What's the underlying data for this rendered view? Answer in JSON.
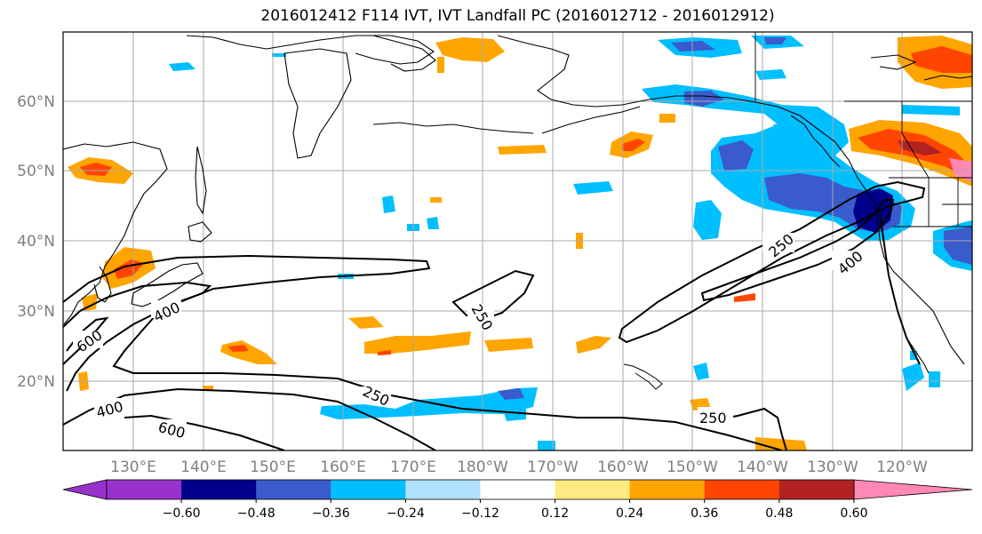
{
  "title": "2016012412 F114 IVT, IVT Landfall PC (2016012712 - 2016012912)",
  "latitude_labels": [
    "20°N",
    "30°N",
    "40°N",
    "50°N",
    "60°N"
  ],
  "longitude_labels": [
    "130°E",
    "140°E",
    "150°E",
    "160°E",
    "170°E",
    "180°W",
    "170°W",
    "160°W",
    "150°W",
    "140°W",
    "130°W",
    "120°W"
  ],
  "contour_labels": [
    {
      "id": "c1",
      "text": "600"
    },
    {
      "id": "c2",
      "text": "400"
    },
    {
      "id": "c3",
      "text": "400"
    },
    {
      "id": "c4",
      "text": "600"
    },
    {
      "id": "c5",
      "text": "250"
    },
    {
      "id": "c6",
      "text": "250"
    },
    {
      "id": "c7",
      "text": "250"
    },
    {
      "id": "c8",
      "text": "250"
    },
    {
      "id": "c9",
      "text": "400"
    }
  ],
  "colorbar": {
    "ticks": [
      "−0.60",
      "−0.48",
      "−0.36",
      "−0.24",
      "−0.12",
      "0.12",
      "0.24",
      "0.36",
      "0.48",
      "0.60"
    ],
    "colors": [
      "#9932cc",
      "#00008b",
      "#3a5bcc",
      "#00bfff",
      "#b0e2ff",
      "#ffffff",
      "#ffeb82",
      "#ffa500",
      "#ff4500",
      "#b22222",
      "#ff88b4"
    ]
  },
  "colors": {
    "contour_line": "#000000",
    "coast_line": "#000000",
    "grid_line": "#a9a9a9",
    "axis_label": "#7f7f7f"
  }
}
